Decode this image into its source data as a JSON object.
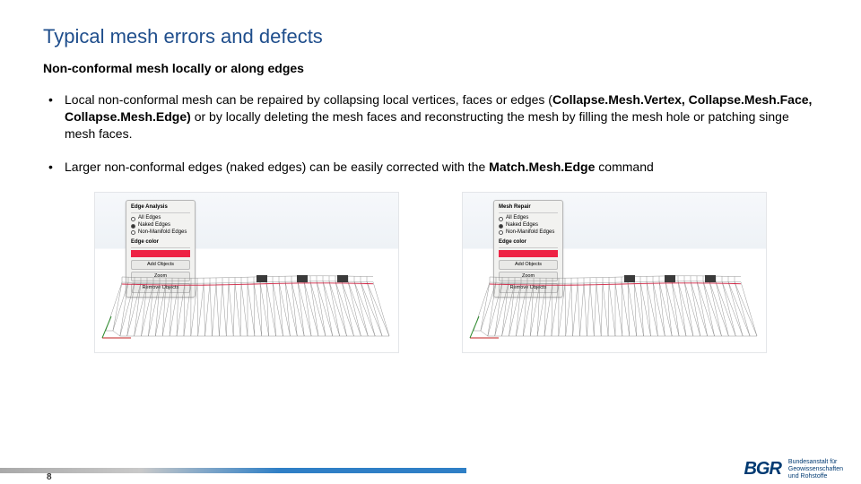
{
  "title": "Typical mesh errors and defects",
  "subtitle": "Non-conformal mesh locally or along edges",
  "bullets": [
    {
      "pre": "Local non-conformal mesh can be repaired by collapsing local vertices, faces or edges (",
      "bold1": "Collapse.Mesh.Vertex, Collapse.Mesh.Face, Collapse.Mesh.Edge)",
      "post1": "  or by locally deleting the mesh faces and reconstructing the mesh by filling the mesh hole or patching singe mesh faces."
    },
    {
      "pre": "Larger non-conformal edges (naked edges) can be easily corrected  with the ",
      "bold1": "Match.Mesh.Edge",
      "post1": " command"
    }
  ],
  "panels": {
    "left": {
      "title": "Edge Analysis",
      "opts": [
        "All Edges",
        "Naked Edges",
        "Non-Manifold Edges"
      ],
      "selected": 1,
      "section": "Edge color",
      "buttons": [
        "Add Objects",
        "Zoom",
        "Remove Objects"
      ]
    },
    "right": {
      "title": "Mesh Repair",
      "opts": [
        "All Edges",
        "Naked Edges",
        "Non-Manifold Edges"
      ],
      "selected": 1,
      "section": "Edge color",
      "buttons": [
        "Add Objects",
        "Zoom",
        "Remove Objects"
      ]
    }
  },
  "mesh_svg": {
    "stroke": "#7b7b7b",
    "accent": "#d02040",
    "green": "#2e8b2e",
    "red": "#c02020"
  },
  "footer": {
    "page": "8",
    "logo_text": "BGR",
    "logo_sub1": "Bundesanstalt für",
    "logo_sub2": "Geowissenschaften",
    "logo_sub3": "und Rohstoffe"
  }
}
